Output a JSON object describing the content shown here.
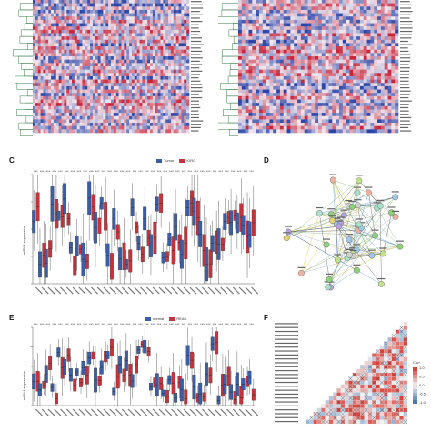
{
  "figure": {
    "panels": {
      "c": "C",
      "d": "D",
      "e": "E",
      "f": "F"
    },
    "panel_c": {
      "legend": [
        {
          "name": "Tumor",
          "color": "#3b5ea8"
        },
        {
          "name": "KIRC",
          "color": "#c8323c"
        }
      ],
      "ylabel": "mRNA expression"
    },
    "panel_e": {
      "legend": [
        {
          "name": "normal",
          "color": "#3b5ea8"
        },
        {
          "name": "READ",
          "color": "#c8323c"
        }
      ],
      "ylabel": "mRNA expression"
    },
    "panel_f": {
      "legend_title": "Corr",
      "legend_ticks": [
        "1.0",
        "0.5",
        "0.0",
        "-0.5",
        "-1.0"
      ],
      "colors": {
        "pos": "#d9413b",
        "neg": "#4a7ab8",
        "neutral": "#f3f3f3"
      }
    },
    "heatmap_colors": {
      "high": "#c8243a",
      "mid": "#f2e8ef",
      "low": "#2b46a8"
    }
  }
}
